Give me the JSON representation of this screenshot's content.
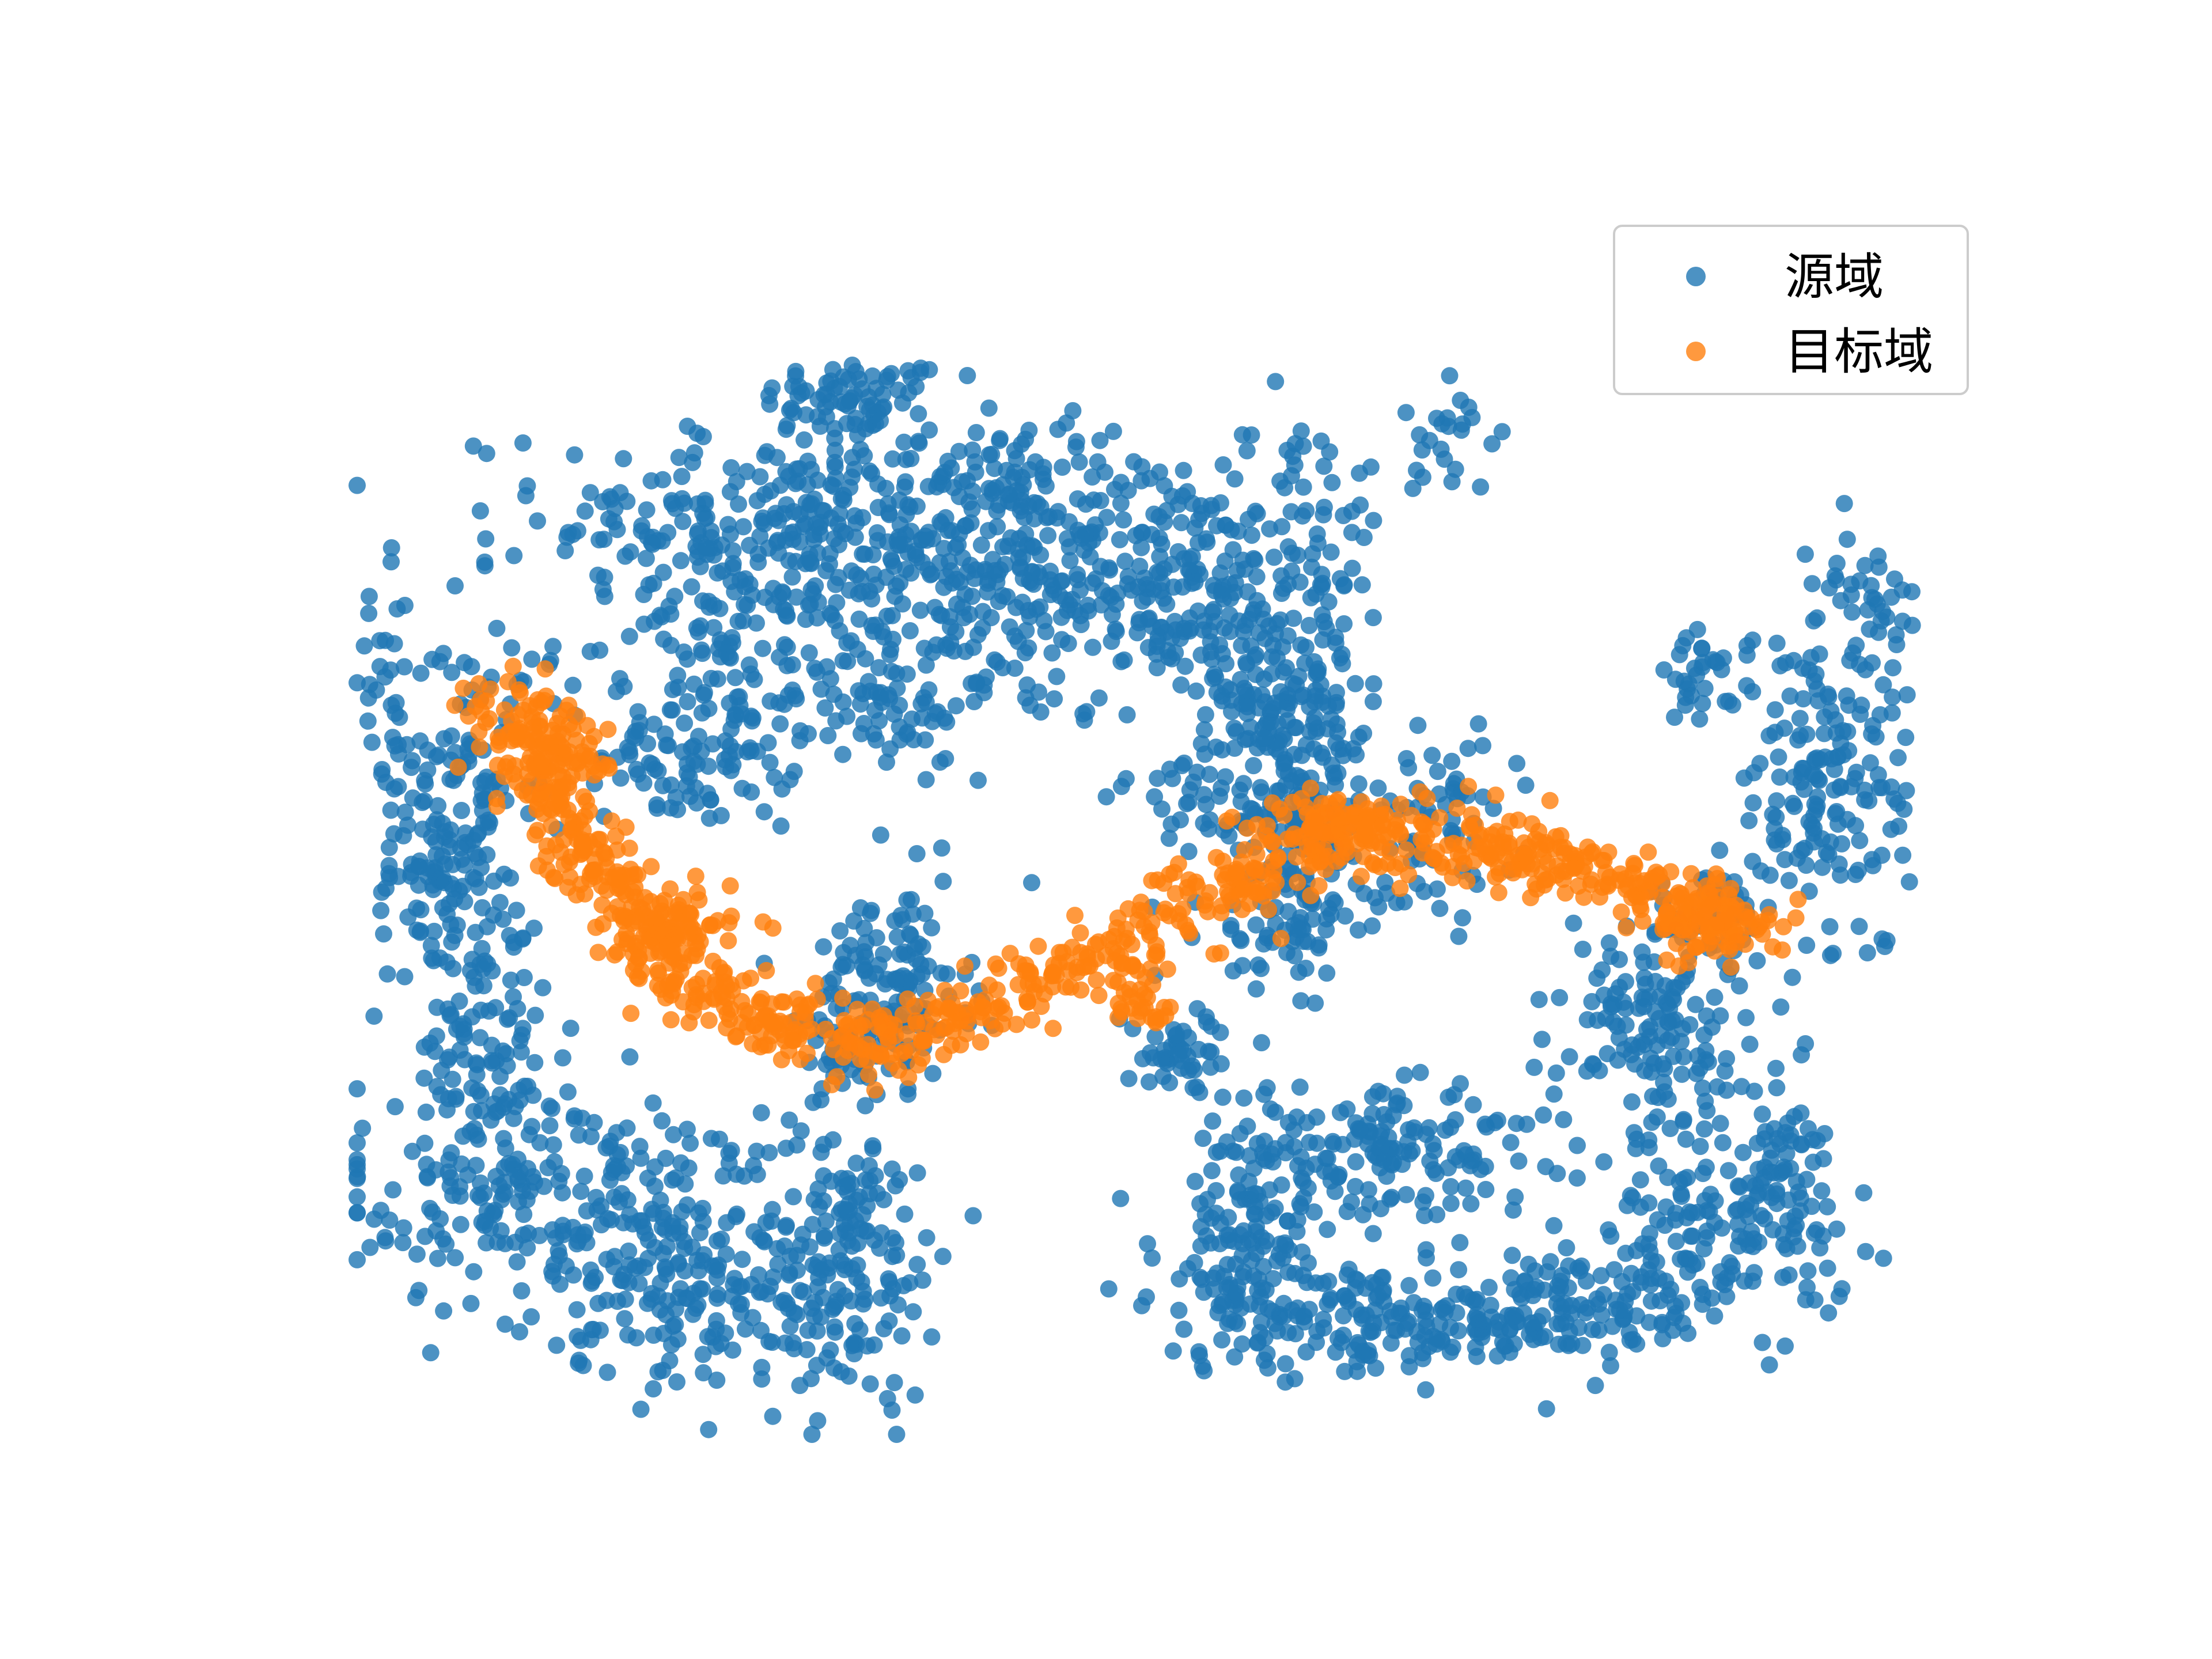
{
  "chart_data": {
    "type": "scatter",
    "title": "",
    "xlabel": "",
    "ylabel": "",
    "axes_visible": false,
    "grid": false,
    "legend_position": "top-right",
    "xlim": [
      0,
      100
    ],
    "ylim": [
      0,
      100
    ],
    "series": [
      {
        "name": "源域",
        "color": "#1f77b4",
        "alpha": 0.8,
        "clusters": [
          {
            "cx": 32,
            "cy": 88,
            "sx": 3,
            "sy": 1.5,
            "n": 60
          },
          {
            "cx": 28,
            "cy": 78,
            "sx": 8,
            "sy": 5,
            "n": 260
          },
          {
            "cx": 27,
            "cy": 68,
            "sx": 7,
            "sy": 6,
            "n": 200
          },
          {
            "cx": 22,
            "cy": 58,
            "sx": 3,
            "sy": 3,
            "n": 90
          },
          {
            "cx": 44,
            "cy": 82,
            "sx": 3,
            "sy": 2,
            "n": 30
          },
          {
            "cx": 41,
            "cy": 72,
            "sx": 5,
            "sy": 6,
            "n": 200
          },
          {
            "cx": 34,
            "cy": 62,
            "sx": 2.5,
            "sy": 2.5,
            "n": 40
          },
          {
            "cx": 52,
            "cy": 72,
            "sx": 4,
            "sy": 5,
            "n": 180
          },
          {
            "cx": 60,
            "cy": 80,
            "sx": 3,
            "sy": 3,
            "n": 40
          },
          {
            "cx": 60,
            "cy": 68,
            "sx": 3,
            "sy": 4,
            "n": 90
          },
          {
            "cx": 60,
            "cy": 52,
            "sx": 2,
            "sy": 2,
            "n": 60
          },
          {
            "cx": 60,
            "cy": 58,
            "sx": 2.5,
            "sy": 3,
            "n": 80
          },
          {
            "cx": 58,
            "cy": 62,
            "sx": 2,
            "sy": 2,
            "n": 40
          },
          {
            "cx": 2,
            "cy": 60,
            "sx": 1,
            "sy": 6,
            "n": 40
          },
          {
            "cx": 4,
            "cy": 46,
            "sx": 1.5,
            "sy": 4,
            "n": 30
          },
          {
            "cx": 7,
            "cy": 52,
            "sx": 2,
            "sy": 9,
            "n": 150
          },
          {
            "cx": 8,
            "cy": 32,
            "sx": 2,
            "sy": 6,
            "n": 100
          },
          {
            "cx": 13,
            "cy": 20,
            "sx": 7,
            "sy": 5,
            "n": 240
          },
          {
            "cx": 22,
            "cy": 12,
            "sx": 5,
            "sy": 4,
            "n": 140
          },
          {
            "cx": 31,
            "cy": 15,
            "sx": 3,
            "sy": 6,
            "n": 160
          },
          {
            "cx": 34,
            "cy": 38,
            "sx": 2.5,
            "sy": 4,
            "n": 130
          },
          {
            "cx": 31,
            "cy": 32,
            "sx": 2,
            "sy": 2,
            "n": 30
          },
          {
            "cx": 53,
            "cy": 32,
            "sx": 2,
            "sy": 2,
            "n": 50
          },
          {
            "cx": 60,
            "cy": 44,
            "sx": 3,
            "sy": 3,
            "n": 90
          },
          {
            "cx": 69,
            "cy": 52,
            "sx": 2.5,
            "sy": 4,
            "n": 60
          },
          {
            "cx": 57,
            "cy": 16,
            "sx": 3,
            "sy": 5,
            "n": 150
          },
          {
            "cx": 66,
            "cy": 24,
            "sx": 5,
            "sy": 2.5,
            "n": 150
          },
          {
            "cx": 66,
            "cy": 9,
            "sx": 6,
            "sy": 2,
            "n": 160
          },
          {
            "cx": 78,
            "cy": 11,
            "sx": 5,
            "sy": 2,
            "n": 110
          },
          {
            "cx": 87,
            "cy": 17,
            "sx": 4,
            "sy": 4,
            "n": 150
          },
          {
            "cx": 91,
            "cy": 23,
            "sx": 1.5,
            "sy": 3,
            "n": 40
          },
          {
            "cx": 83,
            "cy": 35,
            "sx": 3,
            "sy": 5,
            "n": 150
          },
          {
            "cx": 87,
            "cy": 44,
            "sx": 2,
            "sy": 2,
            "n": 40
          },
          {
            "cx": 95,
            "cy": 57,
            "sx": 2,
            "sy": 9,
            "n": 120
          },
          {
            "cx": 92,
            "cy": 52,
            "sx": 2,
            "sy": 5,
            "n": 60
          },
          {
            "cx": 86,
            "cy": 64,
            "sx": 1.5,
            "sy": 2,
            "n": 35
          },
          {
            "cx": 97,
            "cy": 70,
            "sx": 1.5,
            "sy": 2,
            "n": 25
          },
          {
            "cx": 70,
            "cy": 85,
            "sx": 2,
            "sy": 2.5,
            "n": 25
          },
          {
            "cx": 53,
            "cy": 54,
            "sx": 2,
            "sy": 2,
            "n": 30
          }
        ]
      },
      {
        "name": "目标域",
        "color": "#ff7f0e",
        "alpha": 0.8,
        "path": [
          [
            9,
            63
          ],
          [
            12,
            55
          ],
          [
            17,
            45
          ],
          [
            25,
            35
          ],
          [
            33,
            33
          ],
          [
            42,
            37
          ],
          [
            50,
            42
          ],
          [
            58,
            48
          ],
          [
            64,
            51
          ],
          [
            72,
            50
          ],
          [
            80,
            47
          ],
          [
            89,
            43
          ]
        ],
        "spread": 1.6,
        "n": 900,
        "extra_clusters": [
          {
            "cx": 13,
            "cy": 57,
            "sx": 1.5,
            "sy": 2,
            "n": 60
          },
          {
            "cx": 20,
            "cy": 42,
            "sx": 2,
            "sy": 2.5,
            "n": 80
          },
          {
            "cx": 50,
            "cy": 36,
            "sx": 1,
            "sy": 1,
            "n": 25
          },
          {
            "cx": 62,
            "cy": 52,
            "sx": 2,
            "sy": 1,
            "n": 60
          },
          {
            "cx": 87,
            "cy": 43,
            "sx": 2,
            "sy": 1.5,
            "n": 60
          }
        ]
      }
    ]
  }
}
